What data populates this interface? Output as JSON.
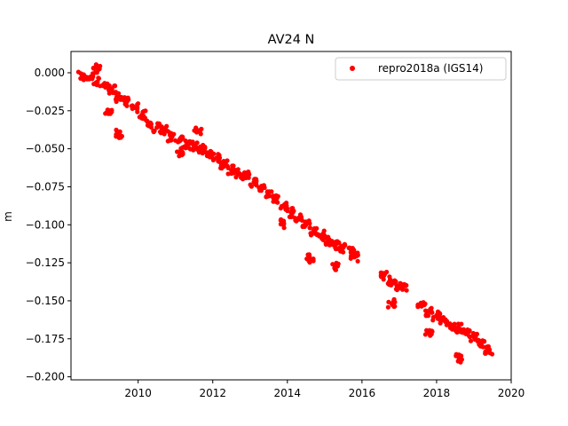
{
  "chart_data": {
    "type": "scatter",
    "title": "AV24 N",
    "xlabel": "",
    "ylabel": "m",
    "xlim": [
      2008.2,
      2020.0
    ],
    "ylim": [
      -0.202,
      0.014
    ],
    "xticks": [
      2010,
      2012,
      2014,
      2016,
      2018,
      2020
    ],
    "xtick_labels": [
      "2010",
      "2012",
      "2014",
      "2016",
      "2018",
      "2020"
    ],
    "yticks": [
      0.0,
      -0.025,
      -0.05,
      -0.075,
      -0.1,
      -0.125,
      -0.15,
      -0.175,
      -0.2
    ],
    "ytick_labels": [
      "0.000",
      "−0.025",
      "−0.050",
      "−0.075",
      "−0.100",
      "−0.125",
      "−0.150",
      "−0.175",
      "−0.200"
    ],
    "legend_position": "top-right",
    "grid": false,
    "series": [
      {
        "name": "repro2018a (IGS14)",
        "color": "#ff0000",
        "marker": "circle",
        "x": [
          2008.5,
          2008.7,
          2008.9,
          2009.1,
          2009.3,
          2009.5,
          2009.7,
          2009.9,
          2010.1,
          2010.3,
          2010.5,
          2010.7,
          2010.9,
          2011.1,
          2011.3,
          2011.5,
          2011.7,
          2011.9,
          2012.1,
          2012.3,
          2012.5,
          2012.7,
          2012.9,
          2013.1,
          2013.3,
          2013.5,
          2013.7,
          2013.9,
          2014.1,
          2014.3,
          2014.5,
          2014.7,
          2014.9,
          2015.1,
          2015.3,
          2015.5,
          2015.7,
          2015.8,
          2016.6,
          2016.8,
          2017.0,
          2017.1,
          2017.6,
          2017.8,
          2018.0,
          2018.2,
          2018.4,
          2018.6,
          2018.8,
          2019.0,
          2019.2,
          2019.4,
          2008.9,
          2009.2,
          2009.5,
          2011.1,
          2011.6,
          2013.9,
          2014.6,
          2015.3,
          2016.8,
          2017.8,
          2018.6
        ],
        "y": [
          -0.002,
          -0.003,
          -0.006,
          -0.008,
          -0.011,
          -0.016,
          -0.019,
          -0.023,
          -0.028,
          -0.033,
          -0.036,
          -0.038,
          -0.042,
          -0.045,
          -0.047,
          -0.048,
          -0.05,
          -0.053,
          -0.056,
          -0.06,
          -0.064,
          -0.066,
          -0.068,
          -0.072,
          -0.076,
          -0.079,
          -0.083,
          -0.088,
          -0.092,
          -0.096,
          -0.1,
          -0.104,
          -0.107,
          -0.111,
          -0.113,
          -0.115,
          -0.118,
          -0.121,
          -0.133,
          -0.137,
          -0.14,
          -0.141,
          -0.153,
          -0.157,
          -0.16,
          -0.163,
          -0.166,
          -0.168,
          -0.171,
          -0.174,
          -0.178,
          -0.183,
          0.003,
          -0.027,
          -0.04,
          -0.052,
          -0.038,
          -0.099,
          -0.122,
          -0.128,
          -0.152,
          -0.17,
          -0.188
        ]
      }
    ]
  }
}
